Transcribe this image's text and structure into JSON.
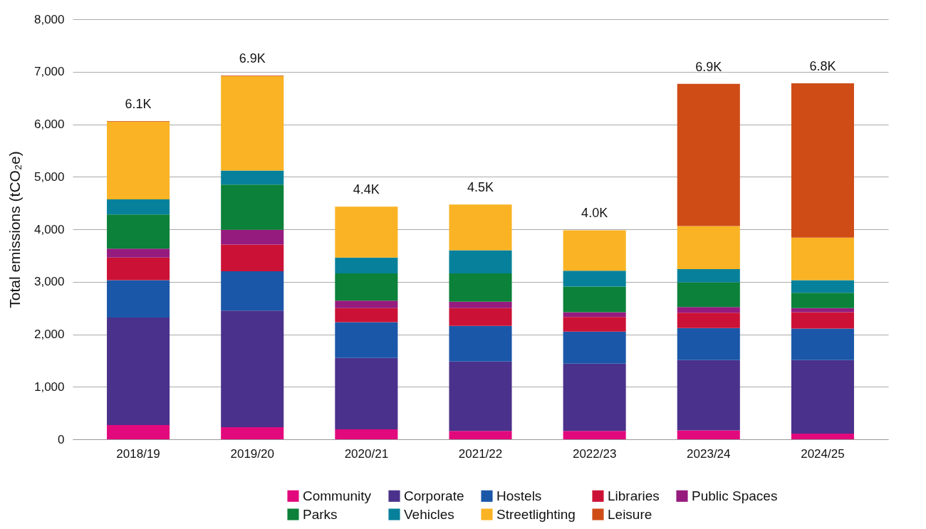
{
  "chart_data": {
    "type": "bar",
    "stacked": true,
    "ylabel": "Total emissions (tCO₂e)",
    "categories": [
      "2018/19",
      "2019/20",
      "2020/21",
      "2021/22",
      "2022/23",
      "2023/24",
      "2024/25"
    ],
    "series": [
      {
        "name": "Community",
        "color": "#e2097c",
        "values": [
          270,
          230,
          190,
          160,
          160,
          170,
          110
        ]
      },
      {
        "name": "Corporate",
        "color": "#4a318b",
        "values": [
          2050,
          2220,
          1360,
          1320,
          1280,
          1340,
          1400
        ]
      },
      {
        "name": "Hostels",
        "color": "#1b57a8",
        "values": [
          710,
          750,
          680,
          680,
          610,
          610,
          600
        ]
      },
      {
        "name": "Libraries",
        "color": "#cb1236",
        "values": [
          430,
          510,
          270,
          340,
          280,
          290,
          310
        ]
      },
      {
        "name": "Public Spaces",
        "color": "#951b7e",
        "values": [
          170,
          280,
          140,
          120,
          90,
          110,
          80
        ]
      },
      {
        "name": "Parks",
        "color": "#0b8139",
        "values": [
          650,
          860,
          520,
          540,
          490,
          470,
          290
        ]
      },
      {
        "name": "Vehicles",
        "color": "#07819b",
        "values": [
          290,
          270,
          300,
          440,
          300,
          250,
          240
        ]
      },
      {
        "name": "Streetlighting",
        "color": "#f9b324",
        "values": [
          1480,
          1800,
          970,
          870,
          770,
          820,
          810
        ]
      },
      {
        "name": "Leisure",
        "color": "#cf4c17",
        "values": [
          10,
          10,
          0,
          0,
          0,
          2710,
          2940
        ]
      }
    ],
    "totals": [
      "6.1K",
      "6.9K",
      "4.4K",
      "4.5K",
      "4.0K",
      "6.9K",
      "6.8K"
    ],
    "ylim": [
      0,
      8000
    ],
    "yticks": [
      0,
      {
        "value": 1000,
        "label": "1,000"
      },
      {
        "value": 2000,
        "label": "2,000"
      },
      {
        "value": 3000,
        "label": "3,000"
      },
      {
        "value": 4000,
        "label": "4,000"
      },
      {
        "value": 5000,
        "label": "5,000"
      },
      {
        "value": 6000,
        "label": "6,000"
      },
      {
        "value": 7000,
        "label": "7,000"
      },
      {
        "value": 8000,
        "label": "8,000"
      }
    ],
    "grid": "y",
    "legend": "bottom"
  }
}
